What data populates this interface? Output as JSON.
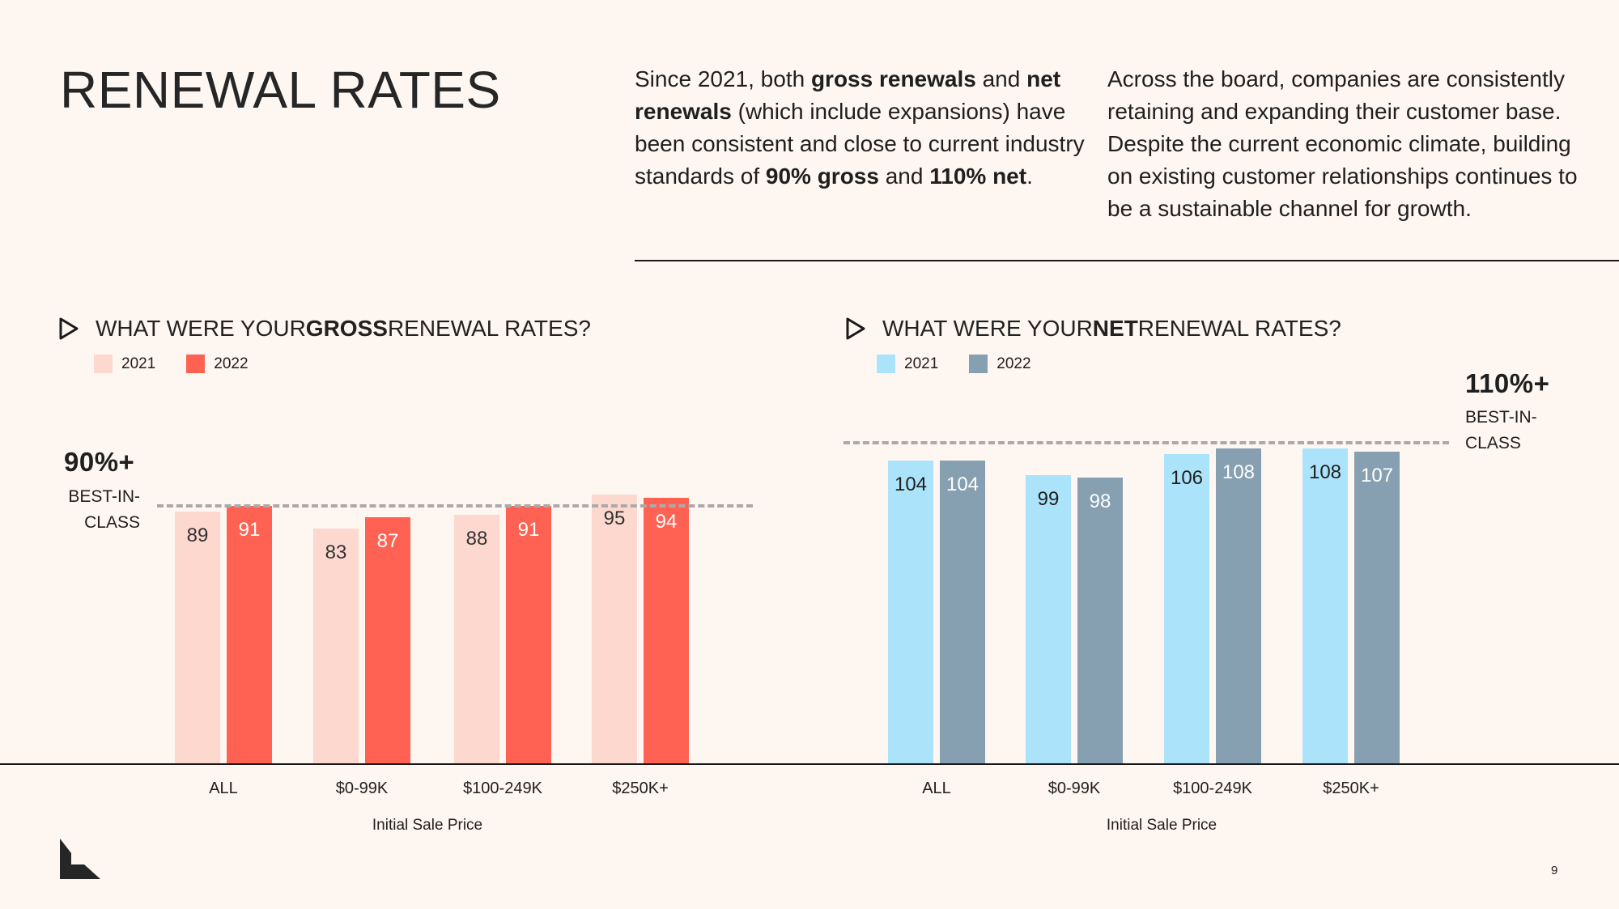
{
  "header": {
    "title": "RENEWAL RATES",
    "intro_left": {
      "t1": "Since 2021, both ",
      "b1": "gross renewals",
      "t2": " and ",
      "b2": "net renewals",
      "t3": " (which include expansions) have been consistent and close to current industry standards of ",
      "b3": "90% gross",
      "t4": " and ",
      "b4": "110% net",
      "t5": "."
    },
    "intro_right": "Across the board, companies are consistently retaining and expanding their customer base. Despite the current economic climate, building on existing customer relationships continues to be a sustainable channel for growth."
  },
  "footer": {
    "page_number": "9",
    "logo_icon": "l-shape-logo-icon"
  },
  "chart_data": [
    {
      "type": "bar",
      "title_pre": "WHAT WERE YOUR ",
      "title_bold": "GROSS",
      "title_post": " RENEWAL RATES?",
      "categories": [
        "ALL",
        "$0-99K",
        "$100-249K",
        "$250K+"
      ],
      "xlabel": "Initial Sale Price",
      "series": [
        {
          "name": "2021",
          "color": "#FDD8CE",
          "values": [
            89,
            83,
            88,
            95
          ]
        },
        {
          "name": "2022",
          "color": "#FF6252",
          "values": [
            91,
            87,
            91,
            94
          ]
        }
      ],
      "best_in_class": {
        "value_label": "90%+",
        "line1": "BEST-IN-",
        "line2": "CLASS",
        "value": 91
      },
      "ylim": [
        0,
        100
      ],
      "legend_position": "top-left"
    },
    {
      "type": "bar",
      "title_pre": "WHAT WERE YOUR ",
      "title_bold": "NET",
      "title_post": " RENEWAL RATES?",
      "categories": [
        "ALL",
        "$0-99K",
        "$100-249K",
        "$250K+"
      ],
      "xlabel": "Initial Sale Price",
      "series": [
        {
          "name": "2021",
          "color": "#ABE3FA",
          "values": [
            104,
            99,
            106,
            108
          ]
        },
        {
          "name": "2022",
          "color": "#86A0B2",
          "values": [
            104,
            98,
            108,
            107
          ]
        }
      ],
      "best_in_class": {
        "value_label": "110%+",
        "line1": "BEST-IN-",
        "line2": "CLASS",
        "value": 110
      },
      "ylim": [
        0,
        114
      ],
      "legend_position": "top-left"
    }
  ]
}
